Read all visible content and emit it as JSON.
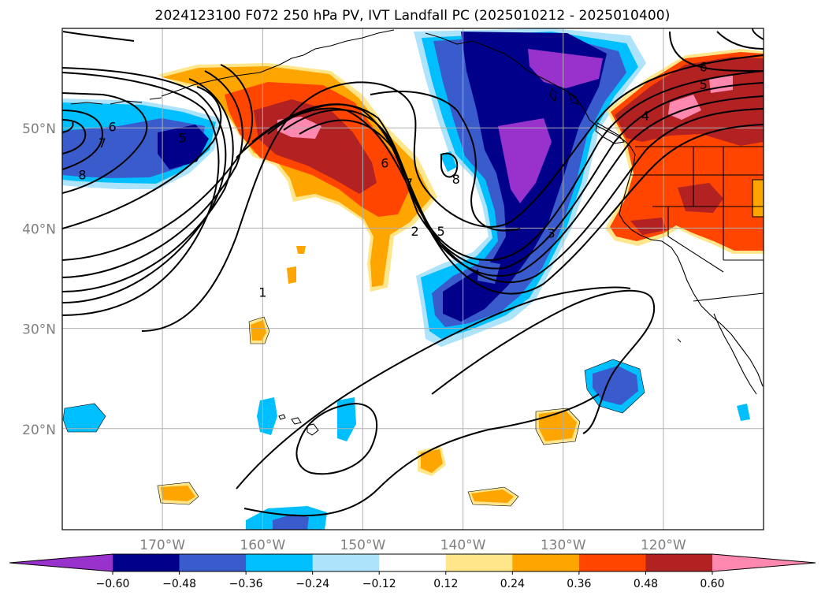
{
  "title": "2024123100 F072 250 hPa PV, IVT Landfall PC (2025010212 - 2025010400)",
  "lat_labels": [
    {
      "lat": 50,
      "text": "50°N"
    },
    {
      "lat": 40,
      "text": "40°N"
    },
    {
      "lat": 30,
      "text": "30°N"
    },
    {
      "lat": 20,
      "text": "20°N"
    }
  ],
  "lon_labels": [
    {
      "lon": -170,
      "text": "170°W"
    },
    {
      "lon": -160,
      "text": "160°W"
    },
    {
      "lon": -150,
      "text": "150°W"
    },
    {
      "lon": -140,
      "text": "140°W"
    },
    {
      "lon": -130,
      "text": "130°W"
    },
    {
      "lon": -120,
      "text": "120°W"
    }
  ],
  "map_extent": {
    "lon_min": -180,
    "lon_max": -110,
    "lat_min": 10,
    "lat_max": 60
  },
  "colorbar": {
    "levels": [
      "−0.60",
      "−0.48",
      "−0.36",
      "−0.24",
      "−0.12",
      "0.12",
      "0.24",
      "0.36",
      "0.48",
      "0.60"
    ],
    "colors": [
      "#9932cc",
      "#00008b",
      "#3a5bcc",
      "#00bfff",
      "#ade3fb",
      "#ffffff",
      "#ffe68a",
      "#ffa500",
      "#ff4500",
      "#b22222",
      "#ff88b0"
    ],
    "extend": "both"
  },
  "contour_labels": [
    {
      "text": "6",
      "lon": -175,
      "lat": 50.2
    },
    {
      "text": "7",
      "lon": -176,
      "lat": 48.6
    },
    {
      "text": "8",
      "lon": -178,
      "lat": 45.4
    },
    {
      "text": "5",
      "lon": -168,
      "lat": 49.1
    },
    {
      "text": "1",
      "lon": -160,
      "lat": 33.7
    },
    {
      "text": "6",
      "lon": -147.8,
      "lat": 46.6
    },
    {
      "text": "7",
      "lon": -145.4,
      "lat": 44.6
    },
    {
      "text": "8",
      "lon": -140.7,
      "lat": 45.0
    },
    {
      "text": "2",
      "lon": -144.8,
      "lat": 39.8
    },
    {
      "text": "5",
      "lon": -142.2,
      "lat": 39.8
    },
    {
      "text": "3",
      "lon": -131.2,
      "lat": 39.6
    },
    {
      "text": "4",
      "lon": -121.8,
      "lat": 51.3
    },
    {
      "text": "5",
      "lon": -116.0,
      "lat": 54.4
    },
    {
      "text": "6",
      "lon": -116.0,
      "lat": 56.2
    }
  ]
}
